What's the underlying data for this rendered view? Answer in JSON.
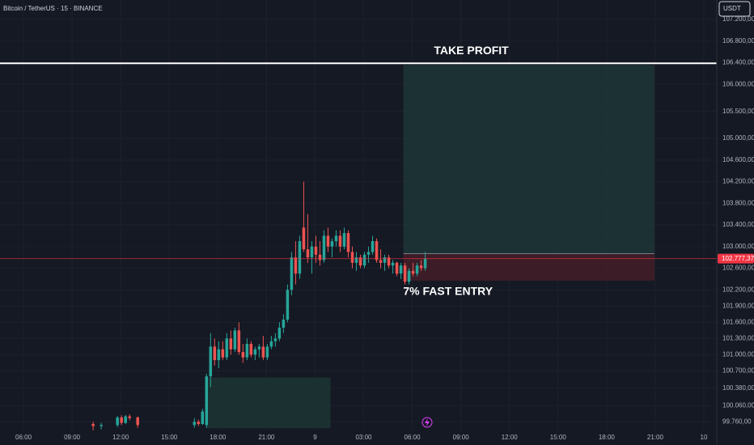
{
  "header": {
    "symbol": "Bitcoin / TetherUS · 15 · BINANCE",
    "currency_button": "USDT"
  },
  "chart_data": {
    "type": "candlestick",
    "up_color": "#26a69a",
    "down_color": "#ef5350",
    "grid": true,
    "xlim": [
      -1.45,
      42.8
    ],
    "xticks": [
      {
        "value": 0,
        "label": "06:00"
      },
      {
        "value": 3,
        "label": "09:00"
      },
      {
        "value": 6,
        "label": "12:00"
      },
      {
        "value": 9,
        "label": "15:00"
      },
      {
        "value": 12,
        "label": "18:00"
      },
      {
        "value": 15,
        "label": "21:00"
      },
      {
        "value": 18,
        "label": "9"
      },
      {
        "value": 21,
        "label": "03:00"
      },
      {
        "value": 24,
        "label": "06:00"
      },
      {
        "value": 27,
        "label": "09:00"
      },
      {
        "value": 30,
        "label": "12:00"
      },
      {
        "value": 33,
        "label": "15:00"
      },
      {
        "value": 36,
        "label": "18:00"
      },
      {
        "value": 39,
        "label": "21:00"
      },
      {
        "value": 42,
        "label": "10"
      }
    ],
    "ylim": [
      99600,
      107560
    ],
    "yticks": [
      {
        "value": 107200,
        "label": "107.200,00"
      },
      {
        "value": 106800,
        "label": "106.800,00"
      },
      {
        "value": 106400,
        "label": "106.400,00"
      },
      {
        "value": 106000,
        "label": "106.000,00"
      },
      {
        "value": 105500,
        "label": "105.500,00"
      },
      {
        "value": 105000,
        "label": "105.000,00"
      },
      {
        "value": 104600,
        "label": "104.600,00"
      },
      {
        "value": 104200,
        "label": "104.200,00"
      },
      {
        "value": 103800,
        "label": "103.800,00"
      },
      {
        "value": 103400,
        "label": "103.400,00"
      },
      {
        "value": 103000,
        "label": "103.000,00"
      },
      {
        "value": 102600,
        "label": "102.600,00"
      },
      {
        "value": 102200,
        "label": "102.200,00"
      },
      {
        "value": 101900,
        "label": "101.900,00"
      },
      {
        "value": 101600,
        "label": "101.600,00"
      },
      {
        "value": 101300,
        "label": "101.300,00"
      },
      {
        "value": 101000,
        "label": "101.000,00"
      },
      {
        "value": 100700,
        "label": "100.700,00"
      },
      {
        "value": 100380,
        "label": "100.380,00"
      },
      {
        "value": 100060,
        "label": "100.060,00"
      },
      {
        "value": 99760,
        "label": "99.760,00"
      }
    ],
    "x": [
      4.3,
      4.8,
      5.8,
      6.05,
      6.3,
      6.55,
      7.05,
      10.55,
      10.8,
      11.05,
      11.3,
      11.55,
      11.8,
      12.05,
      12.3,
      12.55,
      12.8,
      13.05,
      13.3,
      13.55,
      13.8,
      14.05,
      14.3,
      14.55,
      14.8,
      15.05,
      15.3,
      15.55,
      15.8,
      16.05,
      16.3,
      16.55,
      16.8,
      17.05,
      17.3,
      17.55,
      17.8,
      18.05,
      18.3,
      18.55,
      18.8,
      19.05,
      19.3,
      19.55,
      19.8,
      20.05,
      20.3,
      20.55,
      20.8,
      21.05,
      21.3,
      21.55,
      21.8,
      22.05,
      22.3,
      22.55,
      22.8,
      23.05,
      23.3,
      23.55,
      23.8,
      24.05,
      24.3,
      24.55,
      24.8
    ],
    "open": [
      99720,
      99680,
      99700,
      99840,
      99740,
      99860,
      99840,
      99700,
      99760,
      99720,
      99700,
      100600,
      101150,
      100900,
      101100,
      100950,
      101300,
      101100,
      101450,
      101050,
      100950,
      101200,
      101000,
      101100,
      101150,
      100950,
      101150,
      101250,
      101300,
      101500,
      101650,
      102200,
      102800,
      102500,
      103350,
      102950,
      102800,
      103000,
      102850,
      102750,
      103200,
      103000,
      103100,
      103200,
      103000,
      103250,
      102900,
      102700,
      102800,
      102650,
      102850,
      102900,
      103100,
      102750,
      102700,
      102800,
      102650,
      102700,
      102500,
      102650,
      102350,
      102550,
      102500,
      102650,
      102600
    ],
    "high": [
      99760,
      99740,
      99870,
      99880,
      99890,
      99900,
      99860,
      99830,
      99800,
      100000,
      100650,
      101400,
      101300,
      101250,
      101250,
      101400,
      101450,
      101500,
      101600,
      101200,
      101300,
      101250,
      101150,
      101200,
      101350,
      101200,
      101350,
      101400,
      101600,
      101750,
      102300,
      102900,
      103100,
      103200,
      104200,
      103600,
      103100,
      103200,
      103100,
      103300,
      103350,
      103150,
      103300,
      103300,
      103350,
      103300,
      103000,
      102900,
      102850,
      102900,
      103000,
      103200,
      103150,
      102950,
      102850,
      102850,
      102750,
      102720,
      102700,
      102700,
      102600,
      102700,
      102700,
      102750,
      102900
    ],
    "low": [
      99600,
      99620,
      99660,
      99700,
      99720,
      99790,
      99650,
      99650,
      99680,
      99700,
      99650,
      100400,
      100800,
      100750,
      100900,
      100900,
      101000,
      101050,
      101000,
      100850,
      100900,
      100950,
      100900,
      100950,
      100900,
      100900,
      101100,
      101150,
      101250,
      101400,
      101600,
      102100,
      102300,
      102400,
      102900,
      102700,
      102500,
      102700,
      102650,
      102700,
      102900,
      102800,
      103000,
      102900,
      102950,
      102800,
      102600,
      102550,
      102600,
      102600,
      102700,
      102850,
      102700,
      102600,
      102550,
      102600,
      102500,
      102450,
      102400,
      102300,
      102300,
      102450,
      102450,
      102550,
      102550
    ],
    "close": [
      99680,
      99700,
      99840,
      99740,
      99860,
      99830,
      99700,
      99760,
      99720,
      99950,
      100600,
      101150,
      100900,
      101100,
      100950,
      101300,
      101100,
      101450,
      101050,
      100950,
      101200,
      101000,
      101100,
      101150,
      100950,
      101150,
      101250,
      101300,
      101500,
      101650,
      102200,
      102800,
      102500,
      103100,
      102950,
      102800,
      103000,
      102850,
      102750,
      103200,
      103000,
      103100,
      103200,
      103000,
      103250,
      102900,
      102700,
      102800,
      102650,
      102850,
      102900,
      103100,
      102750,
      102700,
      102800,
      102650,
      102700,
      102500,
      102650,
      102350,
      102550,
      102500,
      102650,
      102600,
      102777.37
    ],
    "last_price": {
      "value": 102777.37,
      "label": "102.777,37",
      "color": "#f23645"
    },
    "hlines": [
      {
        "value": 106390,
        "color": "#ffffff",
        "label": "TAKE PROFIT"
      }
    ],
    "zones": [
      {
        "x": [
          23.45,
          38.95
        ],
        "y": [
          102870,
          106360
        ],
        "color": "#1f3a3a"
      },
      {
        "x": [
          23.45,
          38.95
        ],
        "y": [
          102370,
          102870
        ],
        "color": "#4a1f28",
        "label": "7% FAST ENTRY"
      },
      {
        "x": [
          11.3,
          18.95
        ],
        "y": [
          99640,
          100580
        ],
        "color": "#1e3836"
      }
    ]
  }
}
